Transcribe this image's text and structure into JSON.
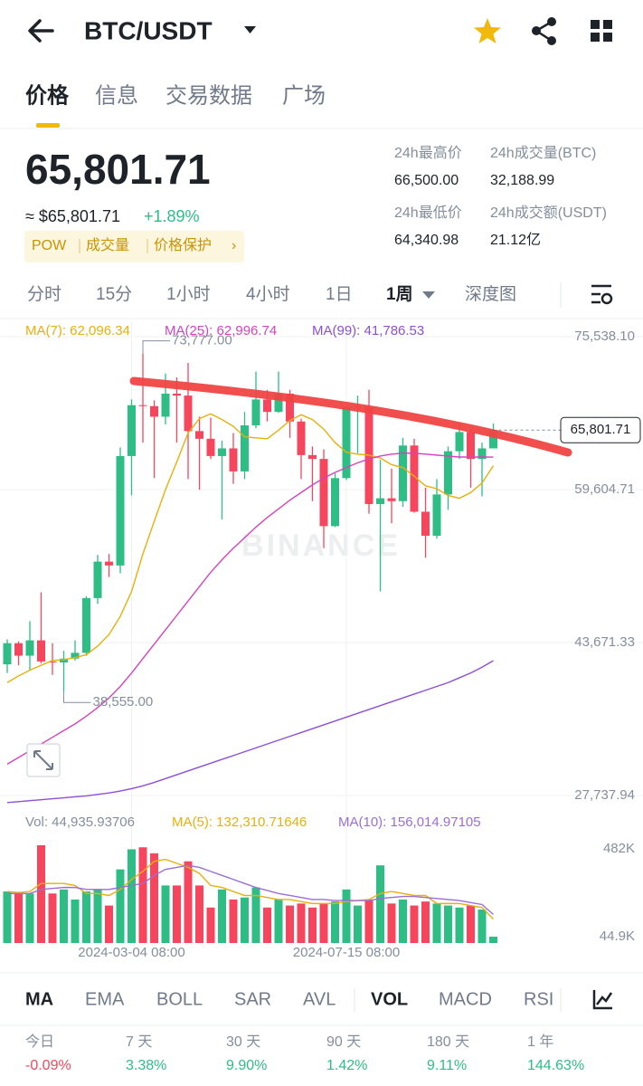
{
  "header": {
    "pair": "BTC/USDT"
  },
  "tabs": {
    "items": [
      "价格",
      "信息",
      "交易数据",
      "广场"
    ],
    "active": 0
  },
  "ticker": {
    "price": "65,801.71",
    "usd": "≈ $65,801.71",
    "change": "+1.89%",
    "tags": [
      "POW",
      "成交量",
      "价格保护"
    ],
    "stats": [
      {
        "label": "24h最高价",
        "value": "66,500.00"
      },
      {
        "label": "24h成交量(BTC)",
        "value": "32,188.99"
      },
      {
        "label": "24h最低价",
        "value": "64,340.98"
      },
      {
        "label": "24h成交额(USDT)",
        "value": "21.12亿"
      }
    ]
  },
  "intervals": {
    "items": [
      "分时",
      "15分",
      "1小时",
      "4小时",
      "1日",
      "1周",
      "深度图"
    ],
    "active": 5
  },
  "chart_data": {
    "type": "candlestick",
    "watermark": "BINANCE",
    "categories": [
      null,
      null,
      null,
      null,
      null,
      null,
      null,
      null,
      null,
      null,
      null,
      "2024-03-04 08:00",
      null,
      null,
      null,
      null,
      null,
      null,
      null,
      null,
      null,
      null,
      null,
      null,
      null,
      null,
      null,
      null,
      null,
      null,
      "2024-07-15 08:00",
      null,
      null,
      null,
      null,
      null,
      null,
      null,
      null,
      null,
      null,
      null,
      null,
      null
    ],
    "open": [
      41400,
      43600,
      42300,
      43900,
      41700,
      41600,
      42000,
      42600,
      48300,
      52100,
      51700,
      63100,
      68400,
      68300,
      67200,
      69600,
      69400,
      65700,
      64900,
      63100,
      63900,
      61500,
      66300,
      69000,
      67700,
      69600,
      66700,
      63200,
      62800,
      55800,
      60800,
      68200,
      68250,
      58100,
      58700,
      58400,
      64200,
      57300,
      54800,
      59100,
      63600,
      65600,
      62800,
      63900
    ],
    "high": [
      44000,
      43800,
      45900,
      48900,
      43600,
      42800,
      43900,
      48500,
      52800,
      52900,
      64000,
      69000,
      73777,
      68900,
      71700,
      71300,
      72800,
      67200,
      67100,
      64700,
      65500,
      67700,
      71900,
      70000,
      71900,
      70000,
      67000,
      64100,
      63800,
      61300,
      68300,
      69400,
      70000,
      62700,
      61800,
      65000,
      64900,
      59800,
      60700,
      64100,
      66500,
      66000,
      64500,
      66500
    ],
    "low": [
      40500,
      41300,
      40800,
      41500,
      40300,
      38555,
      41800,
      42300,
      47700,
      50500,
      50900,
      59000,
      64500,
      60800,
      66400,
      64500,
      60700,
      59600,
      62800,
      56500,
      60200,
      60700,
      66000,
      66700,
      67600,
      65000,
      60700,
      58400,
      53500,
      55700,
      60600,
      63400,
      57100,
      49000,
      56100,
      57800,
      57200,
      52500,
      54500,
      57500,
      62800,
      59800,
      58900,
      64300
    ],
    "close": [
      43600,
      42300,
      43900,
      41700,
      41600,
      42000,
      42600,
      48300,
      52100,
      51700,
      63100,
      68400,
      68300,
      67200,
      69600,
      69400,
      65700,
      64900,
      63100,
      63900,
      61500,
      66300,
      69000,
      67700,
      69600,
      66700,
      63200,
      62800,
      55800,
      60800,
      68200,
      68250,
      58100,
      58700,
      58400,
      64200,
      57300,
      54800,
      59100,
      63600,
      65600,
      62800,
      63900,
      65801.71
    ],
    "last_price": {
      "value": 65801.71,
      "label": "65,801.71"
    },
    "high_label": {
      "index": 12,
      "value": 73777,
      "label": "73,777.00"
    },
    "low_label": {
      "index": 5,
      "value": 38555,
      "label": "38,555.00"
    },
    "up_color": "#2ebd85",
    "down_color": "#f6465d",
    "ylim": [
      26701,
      77141
    ],
    "yticks": [
      {
        "value": 75538.1,
        "label": "75,538.10"
      },
      {
        "value": 59604.71,
        "label": "59,604.71"
      },
      {
        "value": 43671.33,
        "label": "43,671.33"
      },
      {
        "value": 27737.94,
        "label": "27,737.94"
      }
    ],
    "grid": true,
    "series": [
      {
        "name": "MA(7): 62,096.34",
        "color": "#e8b00b",
        "values": [
          39500,
          40200,
          40800,
          41300,
          41800,
          41900,
          42100,
          42400,
          43300,
          44500,
          46400,
          49000,
          52900,
          56300,
          59600,
          62500,
          65500,
          67000,
          67500,
          66900,
          66200,
          65100,
          65000,
          64900,
          65800,
          66800,
          67400,
          66900,
          65900,
          64500,
          63500,
          63300,
          63200,
          62900,
          62200,
          61900,
          61000,
          60000,
          59700,
          59000,
          58700,
          59300,
          60300,
          62096.34
        ]
      },
      {
        "name": "MA(25): 62,996.74",
        "color": "#d543be",
        "values": [
          31000,
          31700,
          32400,
          33100,
          33800,
          34500,
          35200,
          36000,
          36900,
          37900,
          39100,
          40500,
          42000,
          43500,
          45000,
          46500,
          48000,
          49500,
          51000,
          52300,
          53500,
          54600,
          55700,
          56700,
          57600,
          58500,
          59300,
          60100,
          60800,
          61400,
          61900,
          62400,
          62800,
          63100,
          63300,
          63400,
          63400,
          63300,
          63200,
          63100,
          63000,
          63000,
          63000,
          62996.74
        ]
      },
      {
        "name": "MA(99): 41,786.53",
        "color": "#8e4fd6",
        "values": [
          27000,
          27100,
          27200,
          27300,
          27400,
          27500,
          27600,
          27700,
          27850,
          28000,
          28200,
          28450,
          28750,
          29100,
          29500,
          29900,
          30300,
          30700,
          31100,
          31500,
          31900,
          32300,
          32700,
          33100,
          33500,
          33900,
          34300,
          34700,
          35100,
          35500,
          35900,
          36300,
          36700,
          37100,
          37500,
          37900,
          38300,
          38700,
          39100,
          39500,
          40000,
          40500,
          41100,
          41786.53
        ]
      }
    ]
  },
  "volume": {
    "label": "Vol: 44,935.93706",
    "values": [
      270,
      260,
      260,
      500,
      260,
      280,
      230,
      270,
      280,
      200,
      380,
      480,
      490,
      460,
      300,
      300,
      420,
      300,
      190,
      280,
      230,
      240,
      290,
      190,
      230,
      200,
      210,
      190,
      210,
      220,
      280,
      200,
      230,
      400,
      210,
      230,
      200,
      220,
      210,
      200,
      190,
      200,
      180,
      44.9
    ],
    "ylim": [
      13.4,
      540.6
    ],
    "yticks": [
      {
        "value": 482,
        "label": "482K"
      },
      {
        "value": 44.9,
        "label": "44.9K"
      }
    ],
    "series": [
      {
        "name": "MA(5): 132,310.71646",
        "color": "#e8b00b",
        "values": [
          270,
          265,
          270,
          310,
          310,
          310,
          300,
          260,
          260,
          250,
          280,
          330,
          370,
          420,
          430,
          410,
          390,
          360,
          300,
          290,
          270,
          250,
          250,
          240,
          230,
          230,
          220,
          210,
          210,
          210,
          220,
          225,
          230,
          260,
          270,
          260,
          250,
          250,
          210,
          210,
          210,
          200,
          190,
          132.31
        ]
      },
      {
        "name": "MA(10): 156,014.97105",
        "color": "#9b6dd6",
        "values": [
          260,
          260,
          260,
          280,
          285,
          290,
          290,
          280,
          280,
          280,
          290,
          300,
          310,
          350,
          380,
          390,
          400,
          390,
          370,
          350,
          330,
          310,
          290,
          275,
          260,
          250,
          240,
          230,
          230,
          225,
          225,
          225,
          225,
          235,
          240,
          245,
          245,
          240,
          235,
          230,
          225,
          215,
          205,
          156.01
        ]
      }
    ]
  },
  "indicators": {
    "items": [
      "MA",
      "EMA",
      "BOLL",
      "SAR",
      "AVL",
      "VOL",
      "MACD",
      "RSI"
    ],
    "active": [
      0,
      5
    ]
  },
  "performance": [
    {
      "label": "今日",
      "value": "-0.09%",
      "color": "#f6465d"
    },
    {
      "label": "7 天",
      "value": "3.38%",
      "color": "#2ebd85"
    },
    {
      "label": "30 天",
      "value": "9.90%",
      "color": "#2ebd85"
    },
    {
      "label": "90 天",
      "value": "1.42%",
      "color": "#2ebd85"
    },
    {
      "label": "180 天",
      "value": "9.11%",
      "color": "#2ebd85"
    },
    {
      "label": "1 年",
      "value": "144.63%",
      "color": "#2ebd85"
    }
  ]
}
